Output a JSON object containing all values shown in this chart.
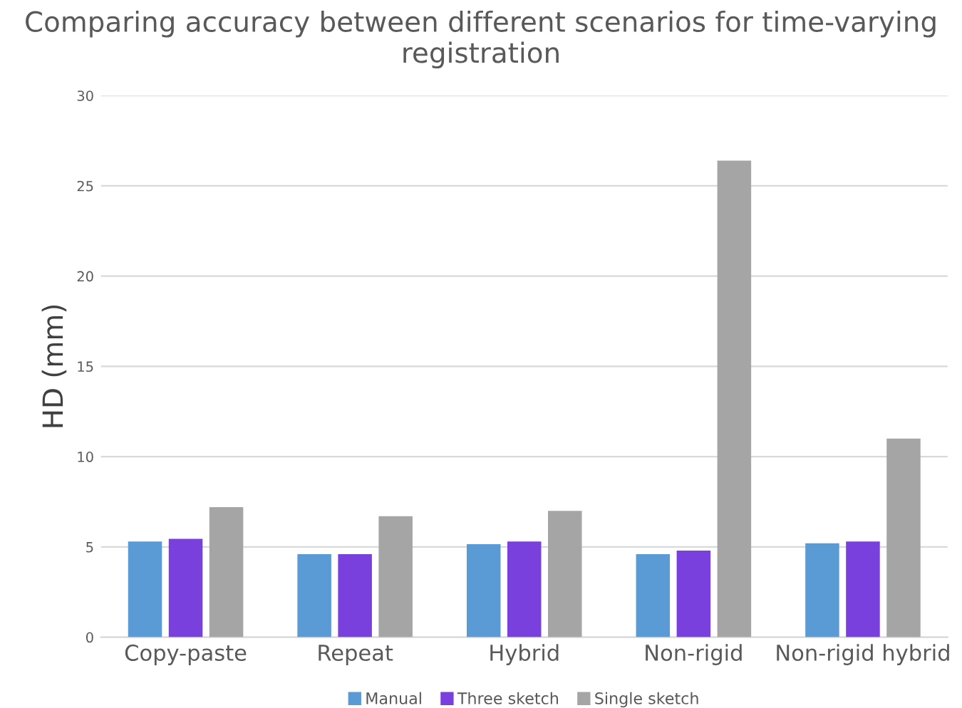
{
  "chart_data": {
    "type": "bar",
    "title": "Comparing accuracy between different scenarios for time-varying registration",
    "ylabel": "HD (mm)",
    "categories": [
      "Copy-paste",
      "Repeat",
      "Hybrid",
      "Non-rigid",
      "Non-rigid hybrid"
    ],
    "series": [
      {
        "name": "Manual",
        "color": "#5b9bd5",
        "values": [
          5.3,
          4.6,
          5.15,
          4.6,
          5.2
        ]
      },
      {
        "name": "Three sketch",
        "color": "#7a40dd",
        "values": [
          5.45,
          4.6,
          5.3,
          4.8,
          5.3
        ]
      },
      {
        "name": "Single sketch",
        "color": "#a5a5a5",
        "values": [
          7.2,
          6.7,
          7.0,
          26.4,
          11.0
        ]
      }
    ],
    "ylim": [
      0,
      30
    ],
    "yticks": [
      0,
      5,
      10,
      15,
      20,
      25,
      30
    ],
    "grid": "y",
    "legend": "bottom"
  }
}
